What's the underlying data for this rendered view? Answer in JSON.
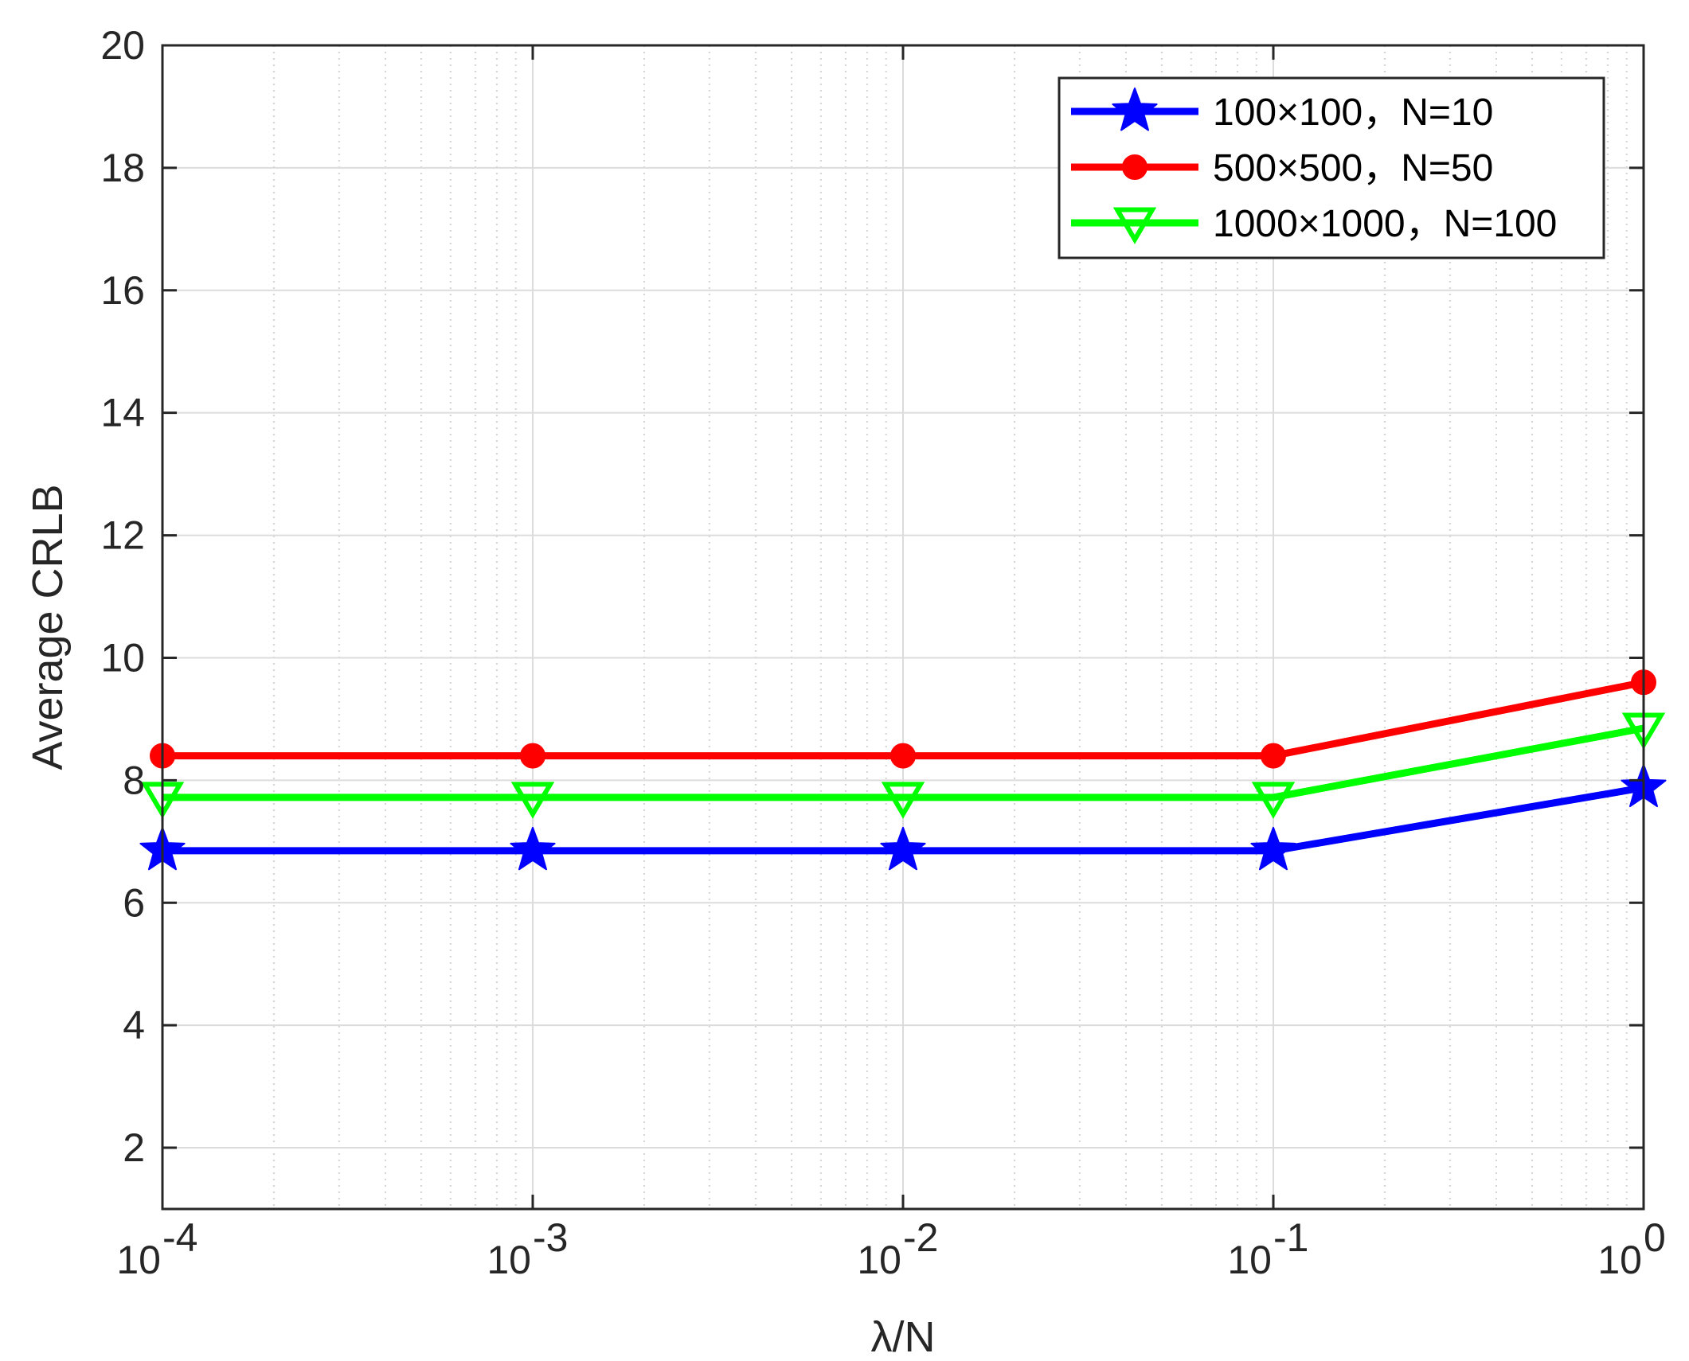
{
  "chart_data": {
    "type": "line",
    "title": "",
    "xlabel": "λ/N",
    "ylabel": "Average CRLB",
    "xscale": "log",
    "x": [
      0.0001,
      0.001,
      0.01,
      0.1,
      1
    ],
    "xlim": [
      0.0001,
      1
    ],
    "ylim": [
      1,
      20
    ],
    "x_ticks": [
      {
        "value": 0.0001,
        "base": "10",
        "exp": "-4"
      },
      {
        "value": 0.001,
        "base": "10",
        "exp": "-3"
      },
      {
        "value": 0.01,
        "base": "10",
        "exp": "-2"
      },
      {
        "value": 0.1,
        "base": "10",
        "exp": "-1"
      },
      {
        "value": 1,
        "base": "10",
        "exp": "0"
      }
    ],
    "y_ticks": [
      "2",
      "4",
      "6",
      "8",
      "10",
      "12",
      "14",
      "16",
      "18",
      "20"
    ],
    "grid": true,
    "legend_position": "top-right",
    "series": [
      {
        "name": "100×100，N=10",
        "color": "#0000ff",
        "marker": "star",
        "values": [
          6.85,
          6.85,
          6.85,
          6.85,
          7.88
        ]
      },
      {
        "name": "500×500，N=50",
        "color": "#ff0000",
        "marker": "circle",
        "values": [
          8.4,
          8.4,
          8.4,
          8.4,
          9.6
        ]
      },
      {
        "name": "1000×1000，N=100",
        "color": "#00ff00",
        "marker": "triangle-down",
        "values": [
          7.72,
          7.72,
          7.72,
          7.72,
          8.85
        ]
      }
    ]
  }
}
